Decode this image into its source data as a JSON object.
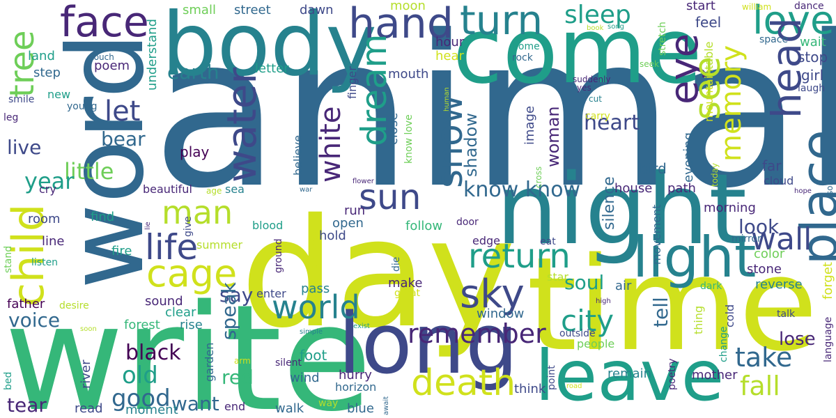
{
  "words": [
    {
      "text": "animal",
      "color": "c3"
    },
    {
      "text": "write",
      "color": "c6"
    },
    {
      "text": "day",
      "color": "c9"
    },
    {
      "text": "time",
      "color": "c9"
    },
    {
      "text": "night",
      "color": "c4"
    },
    {
      "text": "word",
      "color": "c3"
    },
    {
      "text": "body",
      "color": "c4"
    },
    {
      "text": "come",
      "color": "c5"
    },
    {
      "text": "long",
      "color": "c2"
    },
    {
      "text": "leave",
      "color": "c5"
    },
    {
      "text": "child",
      "color": "c9"
    },
    {
      "text": "light",
      "color": "c4"
    },
    {
      "text": "place",
      "color": "c3"
    },
    {
      "text": "face",
      "color": "c1"
    },
    {
      "text": "hand",
      "color": "c2"
    },
    {
      "text": "turn",
      "color": "c4"
    },
    {
      "text": "love",
      "color": "c5"
    },
    {
      "text": "eye",
      "color": "c1"
    },
    {
      "text": "head",
      "color": "c2"
    },
    {
      "text": "water",
      "color": "c2"
    },
    {
      "text": "world",
      "color": "c4"
    },
    {
      "text": "sky",
      "color": "c2"
    },
    {
      "text": "sun",
      "color": "c2"
    },
    {
      "text": "death",
      "color": "c9"
    },
    {
      "text": "cage",
      "color": "c9"
    },
    {
      "text": "life",
      "color": "c2"
    },
    {
      "text": "return",
      "color": "c5"
    },
    {
      "text": "man",
      "color": "c8"
    },
    {
      "text": "snow",
      "color": "c3"
    },
    {
      "text": "dream",
      "color": "c5"
    },
    {
      "text": "tree",
      "color": "c7"
    },
    {
      "text": "see",
      "color": "c8"
    },
    {
      "text": "wall",
      "color": "c2"
    },
    {
      "text": "memory",
      "color": "c9"
    },
    {
      "text": "city",
      "color": "c5"
    },
    {
      "text": "remember",
      "color": "c1"
    },
    {
      "text": "white",
      "color": "c1"
    },
    {
      "text": "fall",
      "color": "c8"
    },
    {
      "text": "take",
      "color": "c3"
    },
    {
      "text": "sleep",
      "color": "c5"
    },
    {
      "text": "let",
      "color": "c2"
    },
    {
      "text": "heart",
      "color": "c2"
    },
    {
      "text": "little",
      "color": "c7"
    },
    {
      "text": "know know",
      "color": "c3"
    },
    {
      "text": "black",
      "color": "c0"
    },
    {
      "text": "old",
      "color": "c5"
    },
    {
      "text": "good",
      "color": "c3"
    },
    {
      "text": "year",
      "color": "c5"
    },
    {
      "text": "earth",
      "color": "c4"
    },
    {
      "text": "bear",
      "color": "c3"
    },
    {
      "text": "live",
      "color": "c2"
    },
    {
      "text": "soul",
      "color": "c5"
    },
    {
      "text": "lose",
      "color": "c1"
    },
    {
      "text": "look",
      "color": "c2"
    },
    {
      "text": "tear",
      "color": "c1"
    },
    {
      "text": "voice",
      "color": "c3"
    },
    {
      "text": "say",
      "color": "c2"
    },
    {
      "text": "speak",
      "color": "c3"
    },
    {
      "text": "want",
      "color": "c3"
    },
    {
      "text": "red",
      "color": "c6"
    },
    {
      "text": "tell",
      "color": "c3"
    },
    {
      "text": "woman",
      "color": "c1"
    },
    {
      "text": "shadow",
      "color": "c3"
    },
    {
      "text": "silence",
      "color": "c3"
    },
    {
      "text": "small",
      "color": "c7"
    },
    {
      "text": "street",
      "color": "c3"
    },
    {
      "text": "dawn",
      "color": "c2"
    },
    {
      "text": "moon",
      "color": "c8"
    },
    {
      "text": "start",
      "color": "c1"
    },
    {
      "text": "feel",
      "color": "c2"
    },
    {
      "text": "dance",
      "color": "c1"
    },
    {
      "text": "wait",
      "color": "c6"
    },
    {
      "text": "stop",
      "color": "c2"
    },
    {
      "text": "girl",
      "color": "c2"
    },
    {
      "text": "laugh",
      "color": "c2"
    },
    {
      "text": "space",
      "color": "c3"
    },
    {
      "text": "william",
      "color": "c9"
    },
    {
      "text": "hour",
      "color": "c1"
    },
    {
      "text": "hear",
      "color": "c9"
    },
    {
      "text": "home",
      "color": "c5"
    },
    {
      "text": "rock",
      "color": "c3"
    },
    {
      "text": "letter",
      "color": "c5"
    },
    {
      "text": "poem",
      "color": "c1"
    },
    {
      "text": "land",
      "color": "c5"
    },
    {
      "text": "step",
      "color": "c3"
    },
    {
      "text": "new",
      "color": "c5"
    },
    {
      "text": "young",
      "color": "c3"
    },
    {
      "text": "smile",
      "color": "c2"
    },
    {
      "text": "leg",
      "color": "c1"
    },
    {
      "text": "mouth",
      "color": "c2"
    },
    {
      "text": "finger",
      "color": "c2"
    },
    {
      "text": "image",
      "color": "c2"
    },
    {
      "text": "close",
      "color": "c3"
    },
    {
      "text": "believe",
      "color": "c3"
    },
    {
      "text": "play",
      "color": "c0"
    },
    {
      "text": "bird",
      "color": "c3"
    },
    {
      "text": "evening",
      "color": "c3"
    },
    {
      "text": "far",
      "color": "c2"
    },
    {
      "text": "cloud",
      "color": "c2"
    },
    {
      "text": "mountain",
      "color": "c9"
    },
    {
      "text": "table",
      "color": "c8"
    },
    {
      "text": "beautiful",
      "color": "c1"
    },
    {
      "text": "sea",
      "color": "c4"
    },
    {
      "text": "house",
      "color": "c1"
    },
    {
      "text": "path",
      "color": "c1"
    },
    {
      "text": "morning",
      "color": "c1"
    },
    {
      "text": "run",
      "color": "c1"
    },
    {
      "text": "open",
      "color": "c3"
    },
    {
      "text": "follow",
      "color": "c6"
    },
    {
      "text": "blood",
      "color": "c5"
    },
    {
      "text": "room",
      "color": "c2"
    },
    {
      "text": "find",
      "color": "c5"
    },
    {
      "text": "summer",
      "color": "c8"
    },
    {
      "text": "hold",
      "color": "c2"
    },
    {
      "text": "line",
      "color": "c1"
    },
    {
      "text": "fire",
      "color": "c5"
    },
    {
      "text": "cry",
      "color": "c1"
    },
    {
      "text": "stand",
      "color": "c7"
    },
    {
      "text": "listen",
      "color": "c5"
    },
    {
      "text": "door",
      "color": "c1"
    },
    {
      "text": "edge",
      "color": "c1"
    },
    {
      "text": "eat",
      "color": "c2"
    },
    {
      "text": "mirror",
      "color": "c3"
    },
    {
      "text": "color",
      "color": "c7"
    },
    {
      "text": "stone",
      "color": "c1"
    },
    {
      "text": "reverse",
      "color": "c4"
    },
    {
      "text": "forget",
      "color": "c9"
    },
    {
      "text": "talk",
      "color": "c2"
    },
    {
      "text": "star",
      "color": "c8"
    },
    {
      "text": "make",
      "color": "c1"
    },
    {
      "text": "air",
      "color": "c3"
    },
    {
      "text": "dark",
      "color": "c6"
    },
    {
      "text": "enter",
      "color": "c2"
    },
    {
      "text": "pass",
      "color": "c4"
    },
    {
      "text": "sound",
      "color": "c1"
    },
    {
      "text": "clear",
      "color": "c5"
    },
    {
      "text": "rise",
      "color": "c4"
    },
    {
      "text": "forest",
      "color": "c6"
    },
    {
      "text": "father",
      "color": "c0"
    },
    {
      "text": "desire",
      "color": "c8"
    },
    {
      "text": "window",
      "color": "c3"
    },
    {
      "text": "great",
      "color": "c9"
    },
    {
      "text": "movement",
      "color": "c3"
    },
    {
      "text": "people",
      "color": "c7"
    },
    {
      "text": "outside",
      "color": "c2"
    },
    {
      "text": "thing",
      "color": "c8"
    },
    {
      "text": "cold",
      "color": "c2"
    },
    {
      "text": "change",
      "color": "c5"
    },
    {
      "text": "foot",
      "color": "c5"
    },
    {
      "text": "garden",
      "color": "c3"
    },
    {
      "text": "wind",
      "color": "c3"
    },
    {
      "text": "silent",
      "color": "c1"
    },
    {
      "text": "hurry",
      "color": "c1"
    },
    {
      "text": "horizon",
      "color": "c3"
    },
    {
      "text": "remain",
      "color": "c4"
    },
    {
      "text": "mother",
      "color": "c1"
    },
    {
      "text": "poetry",
      "color": "c1"
    },
    {
      "text": "language",
      "color": "c1"
    },
    {
      "text": "river",
      "color": "c2"
    },
    {
      "text": "read",
      "color": "c2"
    },
    {
      "text": "moment",
      "color": "c4"
    },
    {
      "text": "end",
      "color": "c1"
    },
    {
      "text": "walk",
      "color": "c3"
    },
    {
      "text": "blue",
      "color": "c3"
    },
    {
      "text": "think",
      "color": "c2"
    },
    {
      "text": "way",
      "color": "c8"
    },
    {
      "text": "point",
      "color": "c2"
    },
    {
      "text": "bed",
      "color": "c5"
    },
    {
      "text": "understand",
      "color": "c5"
    },
    {
      "text": "touch",
      "color": "c3"
    },
    {
      "text": "suddenly",
      "color": "c1"
    },
    {
      "text": "yes",
      "color": "c1"
    },
    {
      "text": "cut",
      "color": "c4"
    },
    {
      "text": "know love",
      "color": "c7"
    },
    {
      "text": "human",
      "color": "c8"
    },
    {
      "text": "carry",
      "color": "c9"
    },
    {
      "text": "seek",
      "color": "c7"
    },
    {
      "text": "stretch",
      "color": "c7"
    },
    {
      "text": "book",
      "color": "c8"
    },
    {
      "text": "song",
      "color": "c5"
    },
    {
      "text": "cross",
      "color": "c7"
    },
    {
      "text": "today",
      "color": "c8"
    },
    {
      "text": "hope",
      "color": "c1"
    },
    {
      "text": "solitude",
      "color": "c3"
    },
    {
      "text": "flower",
      "color": "c1"
    },
    {
      "text": "age",
      "color": "c8"
    },
    {
      "text": "war",
      "color": "c3"
    },
    {
      "text": "die",
      "color": "c3"
    },
    {
      "text": "give",
      "color": "c2"
    },
    {
      "text": "lie",
      "color": "c1"
    },
    {
      "text": "love know",
      "color": "c9"
    },
    {
      "text": "ground",
      "color": "c1"
    },
    {
      "text": "arm",
      "color": "c9"
    },
    {
      "text": "simple",
      "color": "c4"
    },
    {
      "text": "exist",
      "color": "c5"
    },
    {
      "text": "soon",
      "color": "c8"
    },
    {
      "text": "await",
      "color": "c3"
    },
    {
      "text": "road",
      "color": "c9"
    },
    {
      "text": "high",
      "color": "c1"
    }
  ]
}
